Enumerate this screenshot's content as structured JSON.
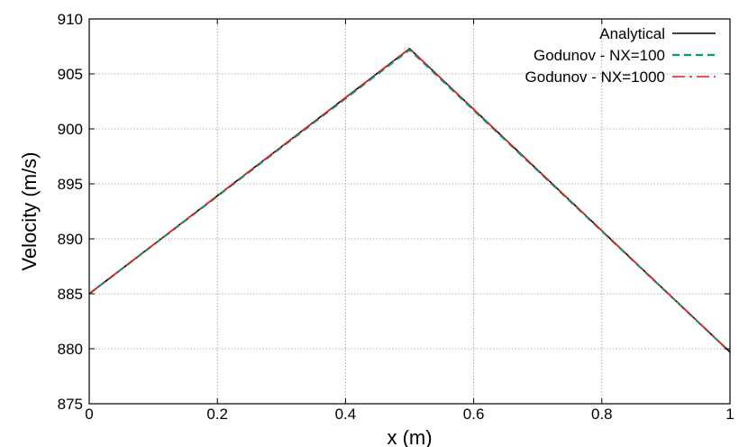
{
  "chart_data": {
    "type": "line",
    "title": "",
    "xlabel": "x (m)",
    "ylabel": "Velocity (m/s)",
    "xlim": [
      0,
      1
    ],
    "ylim": [
      875,
      910
    ],
    "xticks": [
      0,
      0.2,
      0.4,
      0.6,
      0.8,
      1
    ],
    "xtick_labels": [
      "0",
      "0.2",
      "0.4",
      "0.6",
      "0.8",
      "1"
    ],
    "yticks": [
      875,
      880,
      885,
      890,
      895,
      900,
      905,
      910
    ],
    "ytick_labels": [
      "875",
      "880",
      "885",
      "890",
      "895",
      "900",
      "905",
      "910"
    ],
    "grid": true,
    "legend_position": "top-right",
    "series": [
      {
        "name": "Analytical",
        "color": "#000000",
        "dash": "solid",
        "x": [
          0,
          0.5,
          1
        ],
        "y": [
          885.0,
          907.3,
          879.7
        ]
      },
      {
        "name": "Godunov - NX=100",
        "color": "#009e73",
        "dash": "dashed",
        "x": [
          0,
          0.5,
          1
        ],
        "y": [
          885.0,
          907.2,
          879.7
        ]
      },
      {
        "name": "Godunov - NX=1000",
        "color": "#e41a1c",
        "dash": "dashdot",
        "x": [
          0,
          0.5,
          1
        ],
        "y": [
          885.0,
          907.3,
          879.7
        ]
      }
    ]
  }
}
